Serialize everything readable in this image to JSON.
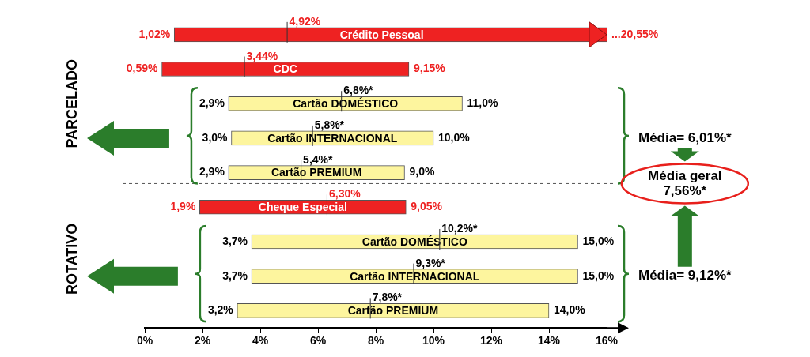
{
  "chart_data": {
    "type": "bar",
    "orientation": "horizontal",
    "grid": false,
    "tick_labels": "x",
    "xlim": [
      0,
      16
    ],
    "xticks": [
      {
        "value": 0,
        "label": "0%"
      },
      {
        "value": 2,
        "label": "2%"
      },
      {
        "value": 4,
        "label": "4%"
      },
      {
        "value": 6,
        "label": "6%"
      },
      {
        "value": 8,
        "label": "8%"
      },
      {
        "value": 10,
        "label": "10%"
      },
      {
        "value": 12,
        "label": "12%"
      },
      {
        "value": 14,
        "label": "14%"
      },
      {
        "value": 16,
        "label": "16%"
      }
    ],
    "groups": [
      {
        "name": "PARCELADO",
        "rows": [
          {
            "name": "Crédito Pessoal",
            "color": "#ee2222",
            "min": 1.02,
            "mean": 4.92,
            "max": 20.55,
            "min_label": "1,02%",
            "mean_label": "4,92%",
            "max_label": "...20,55%"
          },
          {
            "name": "CDC",
            "color": "#ee2222",
            "min": 0.59,
            "mean": 3.44,
            "max": 9.15,
            "min_label": "0,59%",
            "mean_label": "3,44%",
            "max_label": "9,15%"
          }
        ],
        "cards": {
          "average_label": "Média= 6,01%*",
          "rows": [
            {
              "name": "Cartão DOMÉSTICO",
              "color": "#fdf59e",
              "min": 2.9,
              "mean": 6.8,
              "max": 11.0,
              "min_label": "2,9%",
              "mean_label": "6,8%*",
              "max_label": "11,0%"
            },
            {
              "name": "Cartão INTERNACIONAL",
              "color": "#fdf59e",
              "min": 3.0,
              "mean": 5.8,
              "max": 10.0,
              "min_label": "3,0%",
              "mean_label": "5,8%*",
              "max_label": "10,0%"
            },
            {
              "name": "Cartão PREMIUM",
              "color": "#fdf59e",
              "min": 2.9,
              "mean": 5.4,
              "max": 9.0,
              "min_label": "2,9%",
              "mean_label": "5,4%*",
              "max_label": "9,0%"
            }
          ]
        }
      },
      {
        "name": "ROTATIVO",
        "rows": [
          {
            "name": "Cheque Especial",
            "color": "#ee2222",
            "min": 1.9,
            "mean": 6.3,
            "max": 9.05,
            "min_label": "1,9%",
            "mean_label": "6,30%",
            "max_label": "9,05%"
          }
        ],
        "cards": {
          "average_label": "Média= 9,12%*",
          "rows": [
            {
              "name": "Cartão DOMÉSTICO",
              "color": "#fdf59e",
              "min": 3.7,
              "mean": 10.2,
              "max": 15.0,
              "min_label": "3,7%",
              "mean_label": "10,2%*",
              "max_label": "15,0%"
            },
            {
              "name": "Cartão INTERNACIONAL",
              "color": "#fdf59e",
              "min": 3.7,
              "mean": 9.3,
              "max": 15.0,
              "min_label": "3,7%",
              "mean_label": "9,3%*",
              "max_label": "15,0%"
            },
            {
              "name": "Cartão PREMIUM",
              "color": "#fdf59e",
              "min": 3.2,
              "mean": 7.8,
              "max": 14.0,
              "min_label": "3,2%",
              "mean_label": "7,8%*",
              "max_label": "14,0%"
            }
          ]
        }
      }
    ],
    "overall_label": [
      "Média geral",
      "7,56%*"
    ]
  }
}
